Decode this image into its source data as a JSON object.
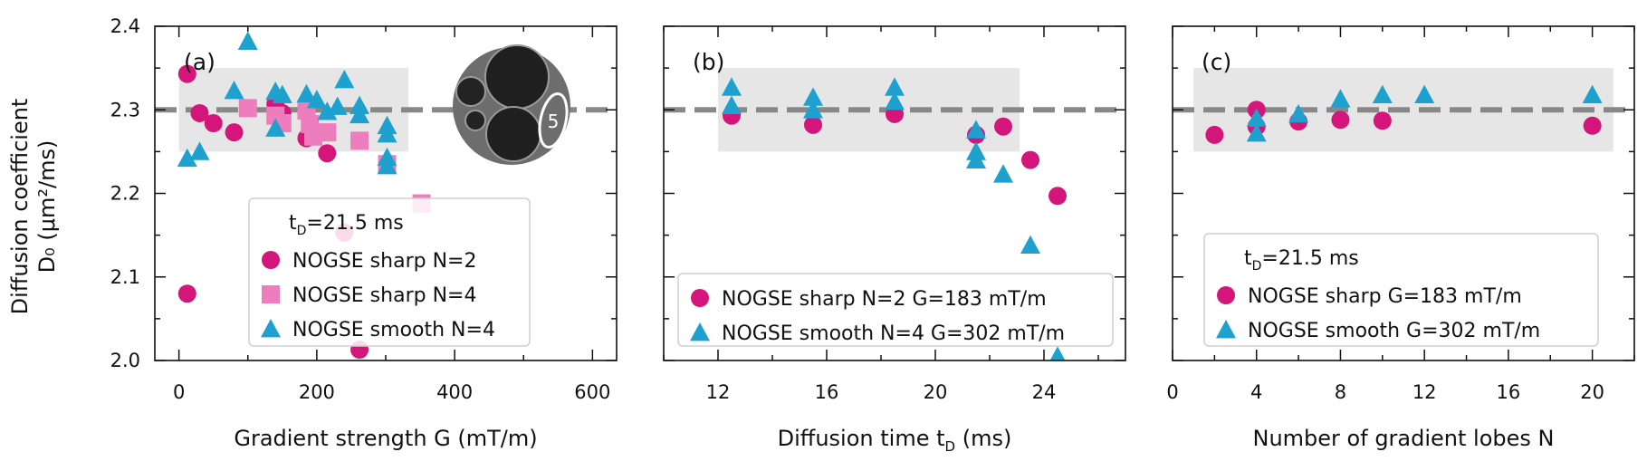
{
  "figure": {
    "ylabel_line1": "Diffusion coefficient",
    "ylabel_line2": "D₀ (μm²/ms)",
    "reference_value": 2.3,
    "reference_band": [
      2.25,
      2.35
    ],
    "colors": {
      "sharp_n2": "#D4167A",
      "sharp_n4": "#EE7DBE",
      "smooth": "#1FA1CF",
      "reference": "#888888",
      "band": "#E6E6E6"
    }
  },
  "chart_data": [
    {
      "type": "scatter",
      "panel": "(a)",
      "xlabel": "Gradient strength G (mT/m)",
      "xlim": [
        -35,
        635
      ],
      "ylim": [
        2.0,
        2.4
      ],
      "xticks": [
        0,
        200,
        400,
        600
      ],
      "xtick_labels": [
        "0",
        "200",
        "400",
        "600"
      ],
      "yticks": [
        2.0,
        2.1,
        2.2,
        2.3,
        2.4
      ],
      "ytick_labels": [
        "2.0",
        "2.1",
        "2.2",
        "2.3",
        "2.4"
      ],
      "band_x": [
        0,
        333
      ],
      "inset_label": "5",
      "legend": {
        "title": "t",
        "title_sub": "D",
        "title_rest": "=21.5 ms",
        "entries": [
          "NOGSE sharp N=2",
          "NOGSE sharp N=4",
          "NOGSE smooth N=4"
        ]
      },
      "series": [
        {
          "name": "NOGSE sharp N=2",
          "marker": "circle",
          "color": "#D4167A",
          "points": [
            [
              12,
              2.343
            ],
            [
              30,
              2.296
            ],
            [
              50,
              2.284
            ],
            [
              80,
              2.273
            ],
            [
              140,
              2.307
            ],
            [
              150,
              2.296
            ],
            [
              185,
              2.266
            ],
            [
              215,
              2.248
            ],
            [
              240,
              2.153
            ],
            [
              262,
              2.013
            ],
            [
              12,
              2.08
            ]
          ]
        },
        {
          "name": "NOGSE sharp N=4",
          "marker": "square",
          "color": "#EE7DBE",
          "points": [
            [
              100,
              2.302
            ],
            [
              140,
              2.293
            ],
            [
              150,
              2.284
            ],
            [
              185,
              2.299
            ],
            [
              190,
              2.283
            ],
            [
              195,
              2.268
            ],
            [
              215,
              2.273
            ],
            [
              262,
              2.263
            ],
            [
              302,
              2.235
            ],
            [
              352,
              2.188
            ]
          ]
        },
        {
          "name": "NOGSE smooth N=4",
          "marker": "triangle",
          "color": "#1FA1CF",
          "points": [
            [
              100,
              2.382
            ],
            [
              140,
              2.322
            ],
            [
              150,
              2.318
            ],
            [
              185,
              2.319
            ],
            [
              200,
              2.312
            ],
            [
              230,
              2.304
            ],
            [
              240,
              2.336
            ],
            [
              262,
              2.305
            ],
            [
              262,
              2.294
            ],
            [
              302,
              2.281
            ],
            [
              302,
              2.271
            ],
            [
              302,
              2.243
            ],
            [
              302,
              2.233
            ],
            [
              12,
              2.242
            ],
            [
              30,
              2.25
            ],
            [
              80,
              2.323
            ],
            [
              140,
              2.278
            ],
            [
              215,
              2.298
            ]
          ]
        }
      ]
    },
    {
      "type": "scatter",
      "panel": "(b)",
      "xlabel": "Diffusion time t",
      "xlabel_sub": "D",
      "xlabel_rest": " (ms)",
      "xlim": [
        10,
        27
      ],
      "ylim": [
        2.0,
        2.4
      ],
      "xticks": [
        12,
        16,
        20,
        24
      ],
      "xtick_labels": [
        "12",
        "16",
        "20",
        "24"
      ],
      "band_x": [
        12,
        23.1
      ],
      "legend": {
        "entries": [
          "NOGSE sharp N=2 G=183 mT/m",
          "NOGSE smooth N=4 G=302 mT/m"
        ]
      },
      "series": [
        {
          "name": "NOGSE sharp N=2 G=183 mT/m",
          "marker": "circle",
          "color": "#D4167A",
          "points": [
            [
              12.5,
              2.293
            ],
            [
              15.5,
              2.282
            ],
            [
              18.5,
              2.295
            ],
            [
              21.5,
              2.27
            ],
            [
              22.5,
              2.28
            ],
            [
              23.5,
              2.24
            ],
            [
              24.5,
              2.197
            ]
          ]
        },
        {
          "name": "NOGSE smooth N=4 G=302 mT/m",
          "marker": "triangle",
          "color": "#1FA1CF",
          "points": [
            [
              12.5,
              2.327
            ],
            [
              12.5,
              2.305
            ],
            [
              15.5,
              2.315
            ],
            [
              15.5,
              2.3
            ],
            [
              18.5,
              2.327
            ],
            [
              18.5,
              2.31
            ],
            [
              21.5,
              2.276
            ],
            [
              21.5,
              2.25
            ],
            [
              21.5,
              2.24
            ],
            [
              22.5,
              2.223
            ],
            [
              23.5,
              2.138
            ],
            [
              24.5,
              2.005
            ]
          ]
        }
      ]
    },
    {
      "type": "scatter",
      "panel": "(c)",
      "xlabel": "Number of gradient lobes N",
      "xlim": [
        0,
        22
      ],
      "ylim": [
        2.0,
        2.4
      ],
      "xticks": [
        0,
        4,
        8,
        12,
        16,
        20
      ],
      "xtick_labels": [
        "0",
        "4",
        "8",
        "12",
        "16",
        "20"
      ],
      "band_x": [
        1,
        21
      ],
      "legend": {
        "title": "t",
        "title_sub": "D",
        "title_rest": "=21.5 ms",
        "entries": [
          "NOGSE sharp G=183 mT/m",
          "NOGSE smooth G=302 mT/m"
        ]
      },
      "series": [
        {
          "name": "NOGSE sharp G=183 mT/m",
          "marker": "circle",
          "color": "#D4167A",
          "points": [
            [
              2,
              2.27
            ],
            [
              4,
              2.3
            ],
            [
              4,
              2.28
            ],
            [
              6,
              2.286
            ],
            [
              8,
              2.288
            ],
            [
              10,
              2.287
            ],
            [
              20,
              2.281
            ]
          ]
        },
        {
          "name": "NOGSE smooth G=302 mT/m",
          "marker": "triangle",
          "color": "#1FA1CF",
          "points": [
            [
              4,
              2.272
            ],
            [
              4,
              2.29
            ],
            [
              6,
              2.295
            ],
            [
              8,
              2.313
            ],
            [
              10,
              2.318
            ],
            [
              12,
              2.318
            ],
            [
              20,
              2.318
            ]
          ]
        }
      ]
    }
  ]
}
